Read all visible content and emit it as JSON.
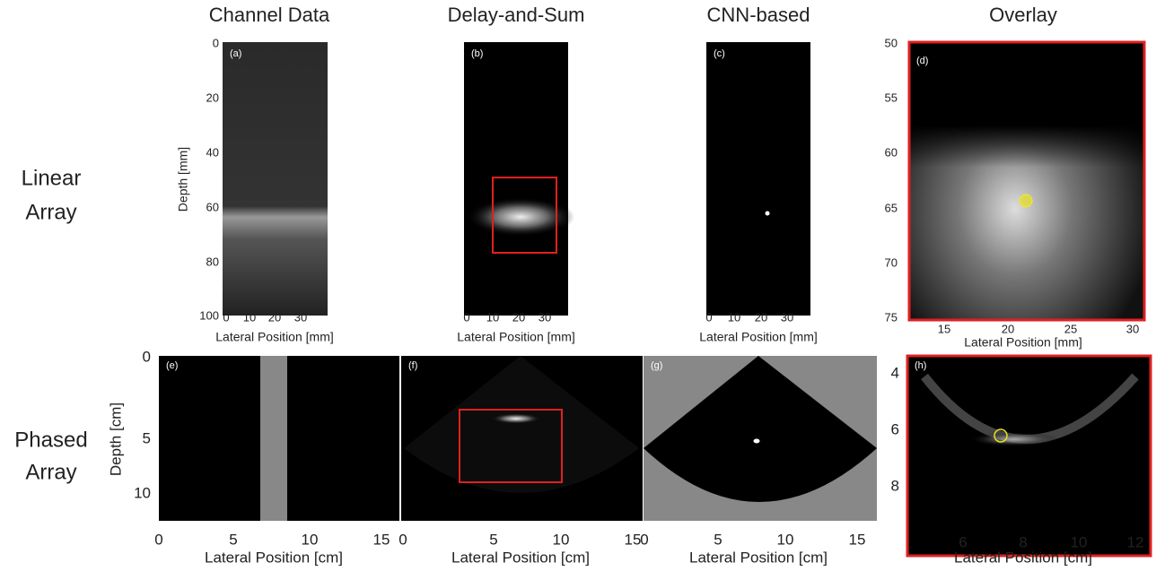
{
  "columns": [
    "Channel Data",
    "Delay-and-Sum",
    "CNN-based",
    "Overlay"
  ],
  "rows": [
    [
      "Linear",
      "Array"
    ],
    [
      "Phased",
      "Array"
    ]
  ],
  "panels": [
    {
      "label": "(a)",
      "x_label": "Lateral Position [mm]",
      "x_ticks": [
        0,
        10,
        20,
        30
      ],
      "y_label": "Depth [mm]",
      "y_ticks": [
        0,
        20,
        40,
        60,
        80,
        100
      ]
    },
    {
      "label": "(b)",
      "x_label": "Lateral Position [mm]",
      "x_ticks": [
        0,
        10,
        20,
        30
      ]
    },
    {
      "label": "(c)",
      "x_label": "Lateral Position [mm]",
      "x_ticks": [
        0,
        10,
        20,
        30
      ]
    },
    {
      "label": "(d)",
      "x_label": "Lateral Position [mm]",
      "x_ticks": [
        15,
        20,
        25,
        30
      ],
      "y_ticks": [
        50,
        55,
        60,
        65,
        70,
        75
      ]
    },
    {
      "label": "(e)",
      "x_label": "Lateral Position [cm]",
      "x_ticks": [
        0,
        5,
        10,
        15
      ],
      "y_label": "Depth [cm]",
      "y_ticks": [
        0,
        5,
        10
      ]
    },
    {
      "label": "(f)",
      "x_label": "Lateral Position [cm]",
      "x_ticks": [
        0,
        5,
        10,
        15
      ]
    },
    {
      "label": "(g)",
      "x_label": "Lateral Position [cm]",
      "x_ticks": [
        0,
        5,
        10,
        15
      ]
    },
    {
      "label": "(h)",
      "x_label": "Lateral Position [cm]",
      "x_ticks": [
        6,
        8,
        10,
        12
      ],
      "y_ticks": [
        4,
        6,
        8
      ]
    }
  ]
}
